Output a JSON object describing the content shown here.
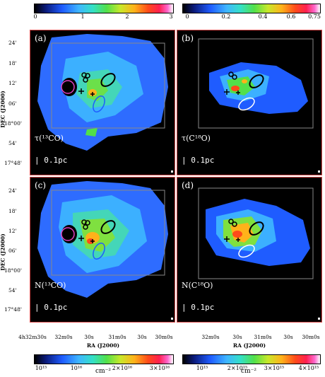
{
  "colorbars": {
    "top_left": {
      "ticks": [
        "0",
        "1",
        "2",
        "3"
      ]
    },
    "top_right": {
      "ticks": [
        "0",
        "0.2",
        "0.4",
        "0.6",
        "0.75"
      ]
    },
    "bottom_left": {
      "ticks": [
        "10¹⁵",
        "10¹⁶",
        "2×10¹⁶",
        "3×10¹⁶"
      ],
      "unit": "cm⁻²"
    },
    "bottom_right": {
      "ticks": [
        "10¹⁵",
        "2×10¹⁵",
        "3×10¹⁵",
        "4×10¹⁵"
      ],
      "unit": "cm⁻²"
    }
  },
  "panels": [
    {
      "label": "(a)",
      "name": "τ(¹³CO)",
      "scale": "| 0.1pc"
    },
    {
      "label": "(b)",
      "name": "τ(C¹⁸O)",
      "scale": "| 0.1pc"
    },
    {
      "label": "(c)",
      "name": "N(¹³CO)",
      "scale": "| 0.1pc"
    },
    {
      "label": "(d)",
      "name": "N(C¹⁸O)",
      "scale": "| 0.1pc"
    }
  ],
  "axes": {
    "ylabel": "DEC (J2000)",
    "yticks_top": [
      "24'",
      "18'",
      "12'",
      "06'",
      "18°00'",
      "54'",
      "17°48'"
    ],
    "yticks_bottom": [
      "24'",
      "18'",
      "12'",
      "06'",
      "18°00'",
      "54'",
      "17°48'"
    ],
    "xlabel": "RA (J2000)",
    "xticks_left": [
      "4h32m30s",
      "32m0s",
      "30s",
      "31m0s",
      "30s",
      "30m0s"
    ],
    "xticks_right": [
      "32m0s",
      "30s",
      "31m0s",
      "30s",
      "30m0s"
    ]
  }
}
